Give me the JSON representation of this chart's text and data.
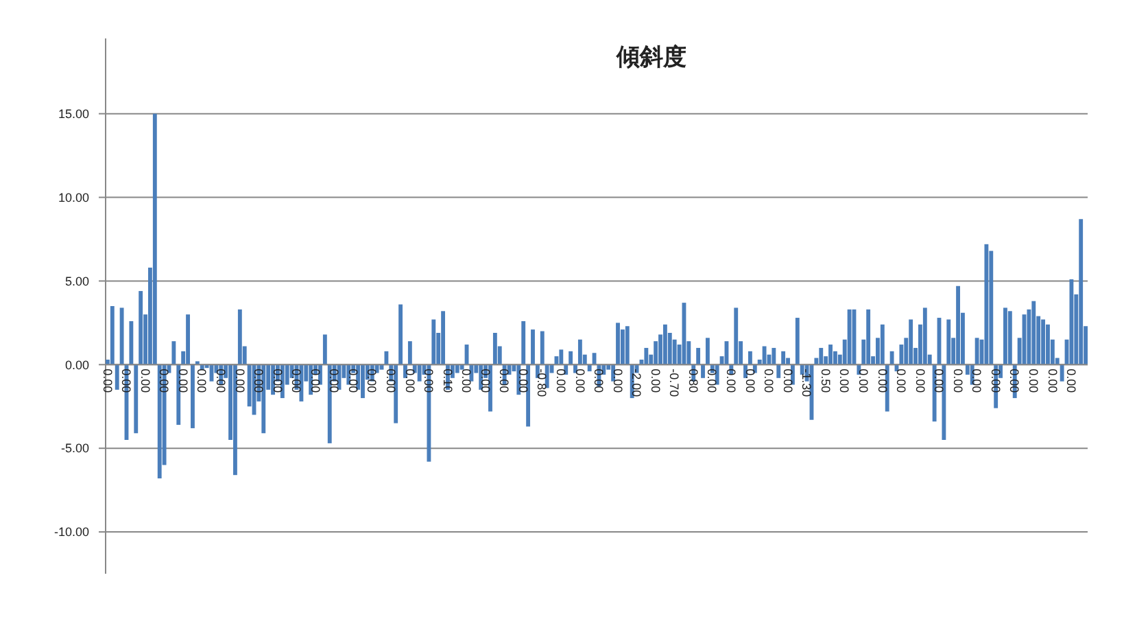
{
  "chart_data": {
    "type": "bar",
    "title": "傾斜度",
    "categories": [
      "0.00",
      null,
      null,
      null,
      "0.00",
      null,
      null,
      null,
      "0.00",
      null,
      null,
      null,
      "0.00",
      null,
      null,
      null,
      "0.00",
      null,
      null,
      null,
      "0.00",
      null,
      null,
      null,
      "0.00",
      null,
      null,
      null,
      "0.00",
      null,
      null,
      null,
      "0.00",
      null,
      null,
      null,
      "0.00",
      null,
      null,
      null,
      "0.00",
      null,
      null,
      null,
      "0.00",
      null,
      null,
      null,
      "0.00",
      null,
      null,
      null,
      "0.00",
      null,
      null,
      null,
      "0.00",
      null,
      null,
      null,
      "0.00",
      null,
      null,
      null,
      "0.00",
      null,
      null,
      null,
      "0.00",
      null,
      null,
      null,
      "0.10",
      null,
      null,
      null,
      "0.00",
      null,
      null,
      null,
      "0.00",
      null,
      null,
      null,
      "0.00",
      null,
      null,
      null,
      "0.00",
      null,
      null,
      null,
      "-0.80",
      null,
      null,
      null,
      "0.00",
      null,
      null,
      null,
      "0.00",
      null,
      null,
      null,
      "0.00",
      null,
      null,
      null,
      "0.00",
      null,
      null,
      null,
      "-2.00",
      null,
      null,
      null,
      "0.00",
      null,
      null,
      null,
      "-0.70",
      null,
      null,
      null,
      "0.80",
      null,
      null,
      null,
      "0.00",
      null,
      null,
      null,
      "0.00",
      null,
      null,
      null,
      "0.00",
      null,
      null,
      null,
      "0.00",
      null,
      null,
      null,
      "0.00",
      null,
      null,
      null,
      "-1.30",
      null,
      null,
      null,
      "0.50",
      null,
      null,
      null,
      "0.00",
      null,
      null,
      null,
      "0.00",
      null,
      null,
      null,
      "0.00",
      null,
      null,
      null,
      "0.00",
      null,
      null,
      null,
      "0.00",
      null,
      null,
      null,
      "0.00",
      null,
      null,
      null,
      "0.00",
      null,
      null,
      null,
      "0.00",
      null,
      null,
      null,
      "0.00",
      null,
      null,
      null,
      "0.00",
      null,
      null,
      null,
      "0.00",
      null,
      null,
      null,
      "0.00",
      null,
      null,
      null,
      "0.00",
      null,
      null,
      null
    ],
    "values": [
      0.3,
      3.5,
      -1.5,
      3.4,
      -4.5,
      2.6,
      -4.1,
      4.4,
      3.0,
      5.8,
      15,
      -6.8,
      -6,
      -0.5,
      1.4,
      -3.6,
      0.8,
      3.0,
      -3.8,
      0.2,
      -0.3,
      -0.2,
      -1.0,
      -0.5,
      -1.2,
      -0.8,
      -4.5,
      -6.6,
      3.3,
      1.1,
      -2.5,
      -3.0,
      -2.2,
      -4.1,
      -1.5,
      -1.8,
      -1.0,
      -2.0,
      -1.2,
      -0.8,
      -1.5,
      -2.2,
      -1.0,
      -1.8,
      -0.6,
      -1.2,
      1.8,
      -4.7,
      -1.0,
      -1.5,
      -0.8,
      -1.2,
      -0.5,
      -1.5,
      -2.0,
      -0.9,
      -1.0,
      -0.5,
      -0.3,
      0.8,
      -1.0,
      -3.5,
      3.6,
      -0.8,
      1.4,
      -0.5,
      -1.0,
      -0.6,
      -5.8,
      2.7,
      1.9,
      3.2,
      -1.5,
      -0.8,
      -0.5,
      -0.3,
      1.2,
      -1.0,
      -0.5,
      -1.5,
      -0.8,
      -2.8,
      1.9,
      1.1,
      -1.2,
      -0.6,
      -0.4,
      -1.8,
      2.6,
      -3.7,
      2.1,
      -0.8,
      2.0,
      -1.4,
      -0.5,
      0.5,
      0.9,
      -0.6,
      0.8,
      -0.5,
      1.5,
      0.6,
      -0.4,
      0.7,
      -1.3,
      -0.6,
      -0.3,
      -1.0,
      2.5,
      2.1,
      2.3,
      -2.0,
      -0.5,
      0.3,
      1.0,
      0.6,
      1.4,
      1.8,
      2.4,
      1.9,
      1.5,
      1.2,
      3.7,
      1.4,
      -1.0,
      1.0,
      -0.8,
      1.6,
      -0.5,
      -1.2,
      0.5,
      1.4,
      -0.6,
      3.4,
      1.4,
      -0.8,
      0.8,
      -0.5,
      0.3,
      1.1,
      0.6,
      1.0,
      -0.8,
      0.8,
      0.4,
      -1.2,
      2.8,
      -0.6,
      -1.0,
      -3.3,
      0.4,
      1.0,
      0.5,
      1.2,
      0.8,
      0.6,
      1.5,
      3.3,
      3.3,
      -0.6,
      1.5,
      3.3,
      0.5,
      1.6,
      2.4,
      -2.8,
      0.8,
      -0.4,
      1.2,
      1.6,
      2.7,
      1.0,
      2.4,
      3.4,
      0.6,
      -3.4,
      2.8,
      -4.5,
      2.7,
      1.6,
      4.7,
      3.1,
      -0.6,
      -1.2,
      1.6,
      1.5,
      7.2,
      6.8,
      -2.6,
      -0.8,
      3.4,
      3.2,
      -2.0,
      1.6,
      3.0,
      3.3,
      3.8,
      2.9,
      2.7,
      2.4,
      1.5,
      0.4,
      -1.0,
      1.5,
      5.1,
      4.2,
      8.7,
      2.3
    ],
    "color": "#4a7ebb",
    "ylim": [
      -12.5,
      19.5
    ],
    "yticks": [
      {
        "value": -10,
        "label": "-10.00"
      },
      {
        "value": -5,
        "label": "-5.00"
      },
      {
        "value": 0,
        "label": "0.00"
      },
      {
        "value": 5,
        "label": "5.00"
      },
      {
        "value": 10,
        "label": "10.00"
      },
      {
        "value": 15,
        "label": "15.00"
      }
    ],
    "grid": "y"
  }
}
